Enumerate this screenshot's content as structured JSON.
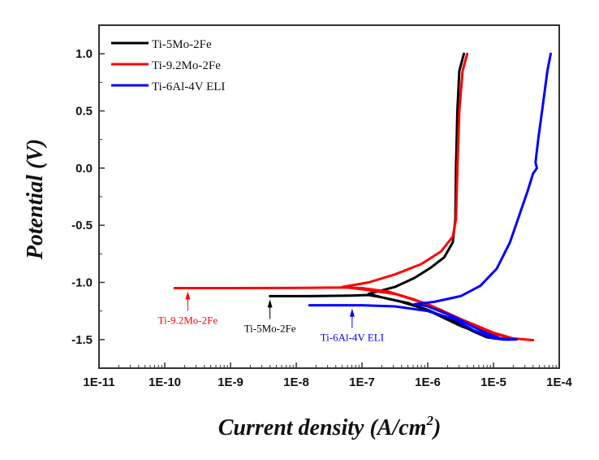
{
  "chart_data": {
    "type": "line",
    "title": "",
    "xlabel": "Current density (A/cm",
    "xlabel_sup": "2",
    "xlabel_close": ")",
    "ylabel": "Potential (V)",
    "xscale": "log",
    "xlim_exp": [
      -11,
      -4
    ],
    "ylim": [
      -1.75,
      1.25
    ],
    "x_ticks": [
      "1E-11",
      "1E-10",
      "1E-9",
      "1E-8",
      "1E-7",
      "1E-6",
      "1E-5",
      "1E-4"
    ],
    "y_ticks": [
      {
        "v": 1.0,
        "label": "1.0"
      },
      {
        "v": 0.5,
        "label": "0.5"
      },
      {
        "v": 0.0,
        "label": "0.0"
      },
      {
        "v": -0.5,
        "label": "-0.5"
      },
      {
        "v": -1.0,
        "label": "-1.0"
      },
      {
        "v": -1.5,
        "label": "-1.5"
      }
    ],
    "legend_position": "top-left",
    "series": [
      {
        "name": "Ti-5Mo-2Fe",
        "color": "#000000",
        "points_logx_v": [
          [
            -8.4,
            -1.12
          ],
          [
            -7.8,
            -1.12
          ],
          [
            -7.2,
            -1.115
          ],
          [
            -6.9,
            -1.11
          ],
          [
            -6.7,
            -1.13
          ],
          [
            -6.4,
            -1.17
          ],
          [
            -6.0,
            -1.24
          ],
          [
            -5.6,
            -1.34
          ],
          [
            -5.3,
            -1.43
          ],
          [
            -5.1,
            -1.48
          ],
          [
            -4.85,
            -1.5
          ],
          [
            -4.75,
            -1.5
          ],
          [
            -4.85,
            -1.5
          ],
          [
            -5.1,
            -1.47
          ],
          [
            -5.5,
            -1.38
          ],
          [
            -5.9,
            -1.27
          ],
          [
            -6.3,
            -1.18
          ],
          [
            -6.7,
            -1.13
          ],
          [
            -6.9,
            -1.1
          ],
          [
            -6.5,
            -1.04
          ],
          [
            -6.2,
            -0.96
          ],
          [
            -5.95,
            -0.87
          ],
          [
            -5.75,
            -0.78
          ],
          [
            -5.62,
            -0.65
          ],
          [
            -5.58,
            -0.45
          ],
          [
            -5.57,
            0.0
          ],
          [
            -5.55,
            0.5
          ],
          [
            -5.52,
            0.85
          ],
          [
            -5.45,
            1.0
          ]
        ]
      },
      {
        "name": "Ti-9.2Mo-2Fe",
        "color": "#ff0000",
        "points_logx_v": [
          [
            -9.85,
            -1.05
          ],
          [
            -9.0,
            -1.05
          ],
          [
            -8.0,
            -1.048
          ],
          [
            -7.3,
            -1.045
          ],
          [
            -7.0,
            -1.05
          ],
          [
            -6.6,
            -1.08
          ],
          [
            -6.2,
            -1.15
          ],
          [
            -5.8,
            -1.24
          ],
          [
            -5.4,
            -1.35
          ],
          [
            -5.0,
            -1.45
          ],
          [
            -4.7,
            -1.49
          ],
          [
            -4.4,
            -1.505
          ],
          [
            -4.7,
            -1.49
          ],
          [
            -5.0,
            -1.44
          ],
          [
            -5.5,
            -1.32
          ],
          [
            -6.0,
            -1.19
          ],
          [
            -6.5,
            -1.1
          ],
          [
            -7.0,
            -1.06
          ],
          [
            -7.3,
            -1.04
          ],
          [
            -6.9,
            -1.0
          ],
          [
            -6.5,
            -0.93
          ],
          [
            -6.1,
            -0.84
          ],
          [
            -5.8,
            -0.73
          ],
          [
            -5.62,
            -0.6
          ],
          [
            -5.57,
            -0.45
          ],
          [
            -5.55,
            0.0
          ],
          [
            -5.52,
            0.5
          ],
          [
            -5.47,
            0.85
          ],
          [
            -5.4,
            1.0
          ]
        ]
      },
      {
        "name": "Ti-6Al-4V ELI",
        "color": "#0000ff",
        "points_logx_v": [
          [
            -7.8,
            -1.2
          ],
          [
            -7.0,
            -1.2
          ],
          [
            -6.5,
            -1.21
          ],
          [
            -6.0,
            -1.25
          ],
          [
            -5.6,
            -1.32
          ],
          [
            -5.3,
            -1.42
          ],
          [
            -5.0,
            -1.49
          ],
          [
            -4.8,
            -1.5
          ],
          [
            -4.65,
            -1.5
          ],
          [
            -4.9,
            -1.49
          ],
          [
            -5.2,
            -1.42
          ],
          [
            -5.6,
            -1.3
          ],
          [
            -6.0,
            -1.21
          ],
          [
            -6.2,
            -1.19
          ],
          [
            -5.9,
            -1.17
          ],
          [
            -5.5,
            -1.12
          ],
          [
            -5.2,
            -1.03
          ],
          [
            -4.95,
            -0.88
          ],
          [
            -4.75,
            -0.65
          ],
          [
            -4.6,
            -0.4
          ],
          [
            -4.48,
            -0.2
          ],
          [
            -4.4,
            -0.05
          ],
          [
            -4.34,
            0.0
          ],
          [
            -4.36,
            0.05
          ],
          [
            -4.32,
            0.25
          ],
          [
            -4.25,
            0.55
          ],
          [
            -4.18,
            0.85
          ],
          [
            -4.13,
            1.0
          ]
        ]
      }
    ],
    "annotations": [
      {
        "text": "Ti-9.2Mo-2Fe",
        "color": "#ff0000",
        "x_exp": -9.65,
        "v": -1.05
      },
      {
        "text": "Ti-5Mo-2Fe",
        "color": "#000000",
        "x_exp": -8.4,
        "v": -1.12
      },
      {
        "text": "Ti-6Al-4V ELI",
        "color": "#0000ff",
        "x_exp": -7.15,
        "v": -1.2
      }
    ]
  }
}
